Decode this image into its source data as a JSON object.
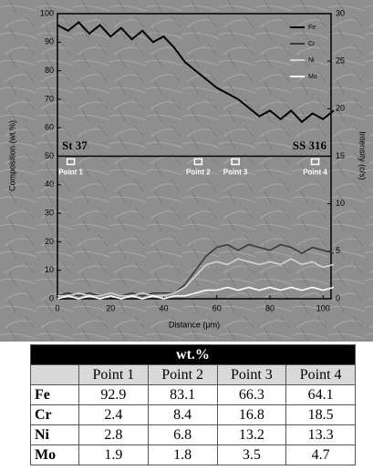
{
  "chart_data": {
    "type": "line",
    "ylabel": "Composition (wt.%)",
    "y2label": "Intensity (c/s)",
    "xlabel": "Distance (μm)",
    "x": [
      0,
      4,
      8,
      12,
      16,
      20,
      24,
      28,
      32,
      36,
      40,
      44,
      48,
      52,
      56,
      60,
      64,
      68,
      72,
      76,
      80,
      84,
      88,
      92,
      96,
      100,
      104
    ],
    "series": [
      {
        "name": "Fe",
        "color": "#000000",
        "values": [
          96,
          94,
          97,
          93,
          96,
          92,
          95,
          91,
          94,
          90,
          92,
          88,
          83,
          80,
          77,
          74,
          72,
          70,
          67,
          64,
          66,
          63,
          66,
          62,
          65,
          63,
          66
        ]
      },
      {
        "name": "Cr",
        "color": "#3a3a3a",
        "values": [
          1,
          2,
          1,
          2,
          1,
          2,
          1,
          2,
          1,
          2,
          2,
          2,
          5,
          10,
          15,
          18,
          19,
          17,
          19,
          18,
          17,
          19,
          18,
          16,
          18,
          17,
          16
        ]
      },
      {
        "name": "Ni",
        "color": "#d4d4d4",
        "values": [
          1,
          1,
          2,
          1,
          1,
          2,
          1,
          1,
          2,
          1,
          1,
          2,
          4,
          8,
          12,
          13,
          12,
          14,
          13,
          12,
          13,
          12,
          14,
          12,
          13,
          11,
          12
        ]
      },
      {
        "name": "Mo",
        "color": "#ffffff",
        "values": [
          0,
          1,
          0,
          1,
          0,
          1,
          0,
          1,
          0,
          1,
          0,
          1,
          1,
          2,
          3,
          3,
          4,
          3,
          4,
          3,
          4,
          3,
          4,
          3,
          4,
          3,
          4
        ]
      }
    ],
    "xlim": [
      0,
      103
    ],
    "xticks": [
      0,
      20,
      40,
      60,
      80,
      100
    ],
    "ylim": [
      0,
      100
    ],
    "yticks": [
      0,
      10,
      20,
      30,
      40,
      50,
      60,
      70,
      80,
      90,
      100
    ],
    "y2lim": [
      0,
      30
    ],
    "y2ticks": [
      0,
      5,
      10,
      15,
      20,
      25,
      30
    ],
    "divider": 50,
    "regions": [
      "St 37",
      "SS 316"
    ],
    "points": [
      {
        "label": "Point 1",
        "x": 5
      },
      {
        "label": "Point 2",
        "x": 53
      },
      {
        "label": "Point 3",
        "x": 67
      },
      {
        "label": "Point 4",
        "x": 97
      }
    ]
  },
  "table": {
    "title": "wt.%",
    "columns": [
      "Point 1",
      "Point 2",
      "Point 3",
      "Point 4"
    ],
    "rows": [
      {
        "label": "Fe",
        "values": [
          92.9,
          83.1,
          66.3,
          64.1
        ]
      },
      {
        "label": "Cr",
        "values": [
          2.4,
          8.4,
          16.8,
          18.5
        ]
      },
      {
        "label": "Ni",
        "values": [
          2.8,
          6.8,
          13.2,
          13.3
        ]
      },
      {
        "label": "Mo",
        "values": [
          1.9,
          1.8,
          3.5,
          4.7
        ]
      }
    ]
  }
}
